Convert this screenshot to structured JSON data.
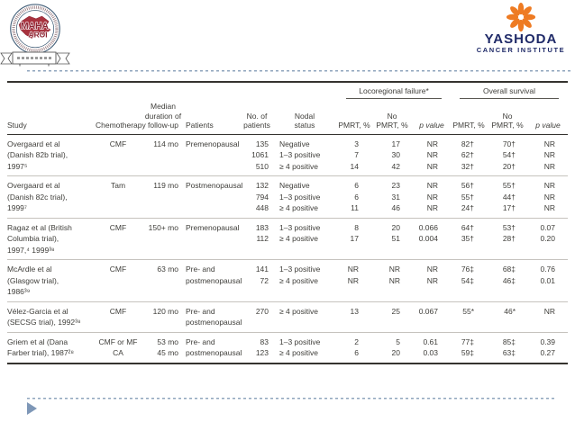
{
  "branding": {
    "left_seal": {
      "text_line1": "MAHA",
      "text_line2": "AROI"
    },
    "right_logo": {
      "title": "YASHODA",
      "subtitle": "CANCER INSTITUTE"
    }
  },
  "colors": {
    "logo_orange": "#ee7b23",
    "logo_navy": "#1f2a68",
    "seal_maroon": "#a8323e",
    "dotted_line": "#8fa5bd",
    "arrow": "#7e97b7",
    "table_text": "#3f3e3a"
  },
  "table": {
    "group_locoregional": "Locoregional failure*",
    "group_overall_survival": "Overall survival",
    "col_headers": {
      "study": "Study",
      "chemotherapy": "Chemotherapy",
      "median_duration": [
        "Median",
        "duration of",
        "follow-up"
      ],
      "patients": "Patients",
      "n_patients": [
        "No. of",
        "patients"
      ],
      "nodal_status": [
        "Nodal",
        "status"
      ],
      "pmrt": "PMRT, %",
      "no_pmrt": [
        "No",
        "PMRT, %"
      ],
      "p_value": "p value"
    },
    "rows": [
      {
        "study": [
          "Overgaard et al",
          "(Danish 82b trial),",
          "1997⁵"
        ],
        "chemotherapy": [
          "CMF"
        ],
        "followup": [
          "114 mo"
        ],
        "patients": [
          "Premenopausal"
        ],
        "n_patients": [
          "135",
          "1061",
          "510"
        ],
        "nodal_status": [
          "Negative",
          "1–3 positive",
          "≥ 4 positive"
        ],
        "lrf_pmrt": [
          "3",
          "7",
          "14"
        ],
        "lrf_no_pmrt": [
          "17",
          "30",
          "42"
        ],
        "lrf_p": [
          "NR",
          "NR",
          "NR"
        ],
        "os_pmrt": [
          "82†",
          "62†",
          "32†"
        ],
        "os_no_pmrt": [
          "70†",
          "54†",
          "20†"
        ],
        "os_p": [
          "NR",
          "NR",
          "NR"
        ]
      },
      {
        "study": [
          "Overgaard et al",
          "(Danish 82c trial),",
          "1999⁷"
        ],
        "chemotherapy": [
          "Tam"
        ],
        "followup": [
          "119 mo"
        ],
        "patients": [
          "Postmenopausal"
        ],
        "n_patients": [
          "132",
          "794",
          "448"
        ],
        "nodal_status": [
          "Negative",
          "1–3 positive",
          "≥ 4 positive"
        ],
        "lrf_pmrt": [
          "6",
          "6",
          "11"
        ],
        "lrf_no_pmrt": [
          "23",
          "31",
          "46"
        ],
        "lrf_p": [
          "NR",
          "NR",
          "NR"
        ],
        "os_pmrt": [
          "56†",
          "55†",
          "24†"
        ],
        "os_no_pmrt": [
          "55†",
          "44†",
          "17†"
        ],
        "os_p": [
          "NR",
          "NR",
          "NR"
        ]
      },
      {
        "study": [
          "Ragaz et al (British",
          "Columbia trial),",
          "1997,⁴ 1999³⁸"
        ],
        "chemotherapy": [
          "CMF"
        ],
        "followup": [
          "150+ mo"
        ],
        "patients": [
          "Premenopausal"
        ],
        "n_patients": [
          "183",
          "112"
        ],
        "nodal_status": [
          "1–3 positive",
          "≥ 4 positive"
        ],
        "lrf_pmrt": [
          "8",
          "17"
        ],
        "lrf_no_pmrt": [
          "20",
          "51"
        ],
        "lrf_p": [
          "0.066",
          "0.004"
        ],
        "os_pmrt": [
          "64†",
          "35†"
        ],
        "os_no_pmrt": [
          "53†",
          "28†"
        ],
        "os_p": [
          "0.07",
          "0.20"
        ]
      },
      {
        "study": [
          "McArdle et al",
          "(Glasgow trial),",
          "1986³⁹"
        ],
        "chemotherapy": [
          "CMF"
        ],
        "followup": [
          "63 mo"
        ],
        "patients": [
          "Pre- and",
          "postmenopausal"
        ],
        "n_patients": [
          "141",
          "72"
        ],
        "nodal_status": [
          "1–3 positive",
          "≥ 4 positive"
        ],
        "lrf_pmrt": [
          "NR",
          "NR"
        ],
        "lrf_no_pmrt": [
          "NR",
          "NR"
        ],
        "lrf_p": [
          "NR",
          "NR"
        ],
        "os_pmrt": [
          "76‡",
          "54‡"
        ],
        "os_no_pmrt": [
          "68‡",
          "46‡"
        ],
        "os_p": [
          "0.76",
          "0.01"
        ]
      },
      {
        "study": [
          "Vélez-Garcia et al",
          "(SECSG trial), 1992³⁸"
        ],
        "chemotherapy": [
          "CMF"
        ],
        "followup": [
          "120 mo"
        ],
        "patients": [
          "Pre- and",
          "postmenopausal"
        ],
        "n_patients": [
          "270"
        ],
        "nodal_status": [
          "≥ 4 positive"
        ],
        "lrf_pmrt": [
          "13"
        ],
        "lrf_no_pmrt": [
          "25"
        ],
        "lrf_p": [
          "0.067"
        ],
        "os_pmrt": [
          "55*"
        ],
        "os_no_pmrt": [
          "46*"
        ],
        "os_p": [
          "NR"
        ]
      },
      {
        "study": [
          "Griem et al (Dana",
          "Farber trial), 1987²⁸"
        ],
        "chemotherapy": [
          "CMF or MF",
          "CA"
        ],
        "followup": [
          "53 mo",
          "45 mo"
        ],
        "patients": [
          "Pre- and",
          "postmenopausal"
        ],
        "n_patients": [
          "83",
          "123"
        ],
        "nodal_status": [
          "1–3 positive",
          "≥ 4 positive"
        ],
        "lrf_pmrt": [
          "2",
          "6"
        ],
        "lrf_no_pmrt": [
          "5",
          "20"
        ],
        "lrf_p": [
          "0.61",
          "0.03"
        ],
        "os_pmrt": [
          "77‡",
          "59‡"
        ],
        "os_no_pmrt": [
          "85‡",
          "63‡"
        ],
        "os_p": [
          "0.39",
          "0.27"
        ]
      }
    ]
  }
}
